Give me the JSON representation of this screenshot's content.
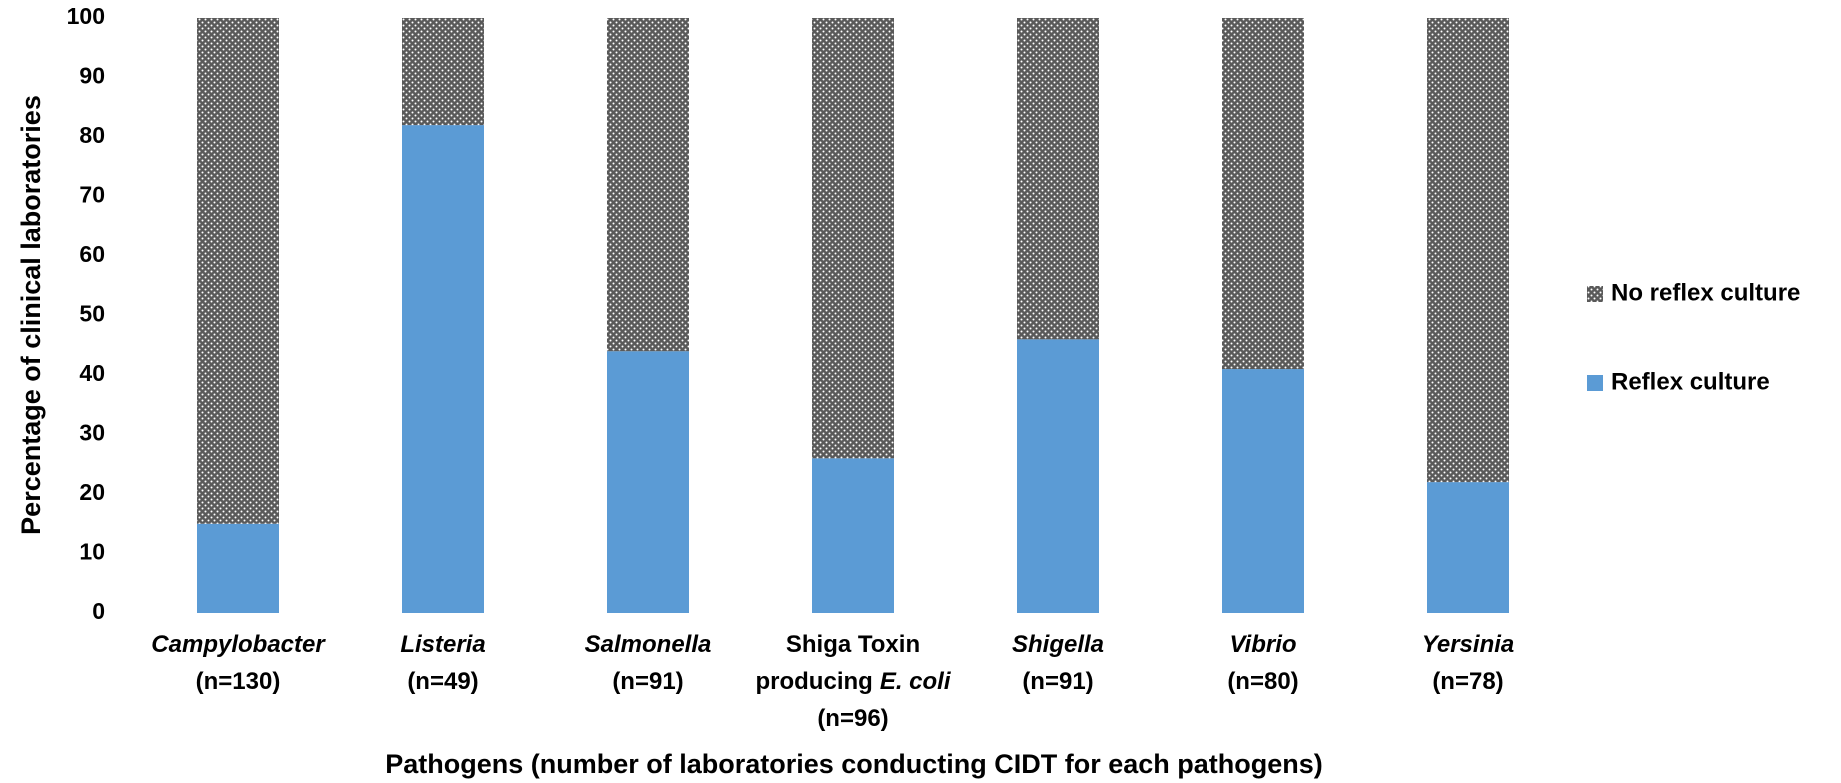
{
  "chart_data": {
    "type": "stacked_bar",
    "ylabel": "Percentage of clinical laboratories",
    "xlabel": "Pathogens (number of laboratories conducting CIDT for each pathogens)",
    "categories": [
      [
        [
          {
            "text": "Campylobacter",
            "italic": true
          }
        ],
        [
          {
            "text": "(n=130)"
          }
        ]
      ],
      [
        [
          {
            "text": "Listeria",
            "italic": true
          }
        ],
        [
          {
            "text": "(n=49)"
          }
        ]
      ],
      [
        [
          {
            "text": "Salmonella",
            "italic": true
          }
        ],
        [
          {
            "text": "(n=91)"
          }
        ]
      ],
      [
        [
          {
            "text": "Shiga Toxin"
          }
        ],
        [
          {
            "text": "producing"
          },
          {
            "text": "E. coli",
            "italic": true
          }
        ],
        [
          {
            "text": "(n=96)"
          }
        ]
      ],
      [
        [
          {
            "text": "Shigella",
            "italic": true
          }
        ],
        [
          {
            "text": "(n=91)"
          }
        ]
      ],
      [
        [
          {
            "text": "Vibrio",
            "italic": true
          }
        ],
        [
          {
            "text": "(n=80)"
          }
        ]
      ],
      [
        [
          {
            "text": "Yersinia",
            "italic": true
          }
        ],
        [
          {
            "text": "(n=78)"
          }
        ]
      ]
    ],
    "series": [
      {
        "name": "Reflex culture",
        "color": "#5b9bd5",
        "values": [
          15,
          82,
          44,
          26,
          46,
          41,
          22
        ]
      },
      {
        "name": "No reflex culture",
        "color": "#595959",
        "pattern": "dots",
        "values": [
          85,
          18,
          56,
          74,
          54,
          59,
          78
        ]
      }
    ],
    "ylim": [
      0,
      100
    ],
    "yticks": [
      0,
      10,
      20,
      30,
      40,
      50,
      60,
      70,
      80,
      90,
      100
    ],
    "legend": "right"
  }
}
